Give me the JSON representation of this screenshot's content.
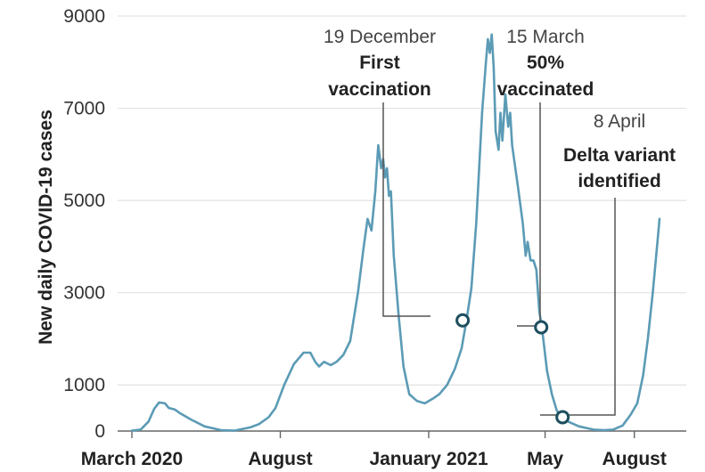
{
  "chart_data": {
    "type": "line",
    "title": "",
    "xlabel": "",
    "ylabel": "New daily COVID-19 cases",
    "ylim": [
      0,
      9000
    ],
    "yticks": [
      0,
      1000,
      3000,
      5000,
      7000,
      9000
    ],
    "xticks": [
      {
        "label": "March 2020",
        "date": "2020-03-01"
      },
      {
        "label": "August",
        "date": "2020-08-01"
      },
      {
        "label": "January 2021",
        "date": "2021-01-01"
      },
      {
        "label": "May",
        "date": "2021-05-01"
      },
      {
        "label": "August",
        "date": "2021-08-01"
      }
    ],
    "grid": {
      "horizontal": true,
      "vertical": false
    },
    "colors": {
      "line": "#5b9bb5",
      "grid": "#e3e3e3",
      "annotation": "#555555"
    },
    "series": [
      {
        "points": [
          [
            "2020-03-01",
            10
          ],
          [
            "2020-03-10",
            30
          ],
          [
            "2020-03-18",
            200
          ],
          [
            "2020-03-24",
            480
          ],
          [
            "2020-03-29",
            620
          ],
          [
            "2020-04-04",
            600
          ],
          [
            "2020-04-08",
            500
          ],
          [
            "2020-04-14",
            470
          ],
          [
            "2020-04-20",
            380
          ],
          [
            "2020-05-01",
            250
          ],
          [
            "2020-05-15",
            100
          ],
          [
            "2020-06-01",
            20
          ],
          [
            "2020-06-15",
            10
          ],
          [
            "2020-07-01",
            80
          ],
          [
            "2020-07-10",
            150
          ],
          [
            "2020-07-20",
            300
          ],
          [
            "2020-07-27",
            500
          ],
          [
            "2020-08-05",
            1000
          ],
          [
            "2020-08-15",
            1450
          ],
          [
            "2020-08-25",
            1700
          ],
          [
            "2020-09-01",
            1700
          ],
          [
            "2020-09-06",
            1500
          ],
          [
            "2020-09-10",
            1400
          ],
          [
            "2020-09-15",
            1500
          ],
          [
            "2020-09-22",
            1430
          ],
          [
            "2020-09-28",
            1500
          ],
          [
            "2020-10-05",
            1650
          ],
          [
            "2020-10-12",
            1950
          ],
          [
            "2020-10-20",
            3000
          ],
          [
            "2020-10-26",
            4000
          ],
          [
            "2020-10-30",
            4600
          ],
          [
            "2020-11-03",
            4350
          ],
          [
            "2020-11-07",
            5200
          ],
          [
            "2020-11-10",
            6200
          ],
          [
            "2020-11-13",
            5700
          ],
          [
            "2020-11-15",
            5900
          ],
          [
            "2020-11-17",
            5500
          ],
          [
            "2020-11-19",
            5700
          ],
          [
            "2020-11-21",
            5100
          ],
          [
            "2020-11-23",
            5200
          ],
          [
            "2020-11-26",
            3800
          ],
          [
            "2020-12-01",
            2500
          ],
          [
            "2020-12-06",
            1400
          ],
          [
            "2020-12-12",
            800
          ],
          [
            "2020-12-20",
            650
          ],
          [
            "2020-12-28",
            600
          ],
          [
            "2021-01-05",
            700
          ],
          [
            "2021-01-12",
            800
          ],
          [
            "2021-01-20",
            1000
          ],
          [
            "2021-01-28",
            1350
          ],
          [
            "2021-02-04",
            1800
          ],
          [
            "2021-02-09",
            2400
          ],
          [
            "2021-02-14",
            3100
          ],
          [
            "2021-02-19",
            4500
          ],
          [
            "2021-02-22",
            5700
          ],
          [
            "2021-02-25",
            6900
          ],
          [
            "2021-03-01",
            8000
          ],
          [
            "2021-03-03",
            8500
          ],
          [
            "2021-03-05",
            8200
          ],
          [
            "2021-03-07",
            8600
          ],
          [
            "2021-03-09",
            7900
          ],
          [
            "2021-03-11",
            6500
          ],
          [
            "2021-03-14",
            6100
          ],
          [
            "2021-03-16",
            6900
          ],
          [
            "2021-03-18",
            6300
          ],
          [
            "2021-03-21",
            7300
          ],
          [
            "2021-03-24",
            6600
          ],
          [
            "2021-03-26",
            6900
          ],
          [
            "2021-03-28",
            6200
          ],
          [
            "2021-04-03",
            5300
          ],
          [
            "2021-04-08",
            4500
          ],
          [
            "2021-04-11",
            3800
          ],
          [
            "2021-04-13",
            4100
          ],
          [
            "2021-04-16",
            3700
          ],
          [
            "2021-04-19",
            3700
          ],
          [
            "2021-04-22",
            3500
          ],
          [
            "2021-04-25",
            2600
          ],
          [
            "2021-04-28",
            2200
          ],
          [
            "2021-05-03",
            1300
          ],
          [
            "2021-05-08",
            800
          ],
          [
            "2021-05-13",
            450
          ],
          [
            "2021-05-18",
            300
          ],
          [
            "2021-05-25",
            200
          ],
          [
            "2021-06-05",
            100
          ],
          [
            "2021-06-20",
            30
          ],
          [
            "2021-07-01",
            20
          ],
          [
            "2021-07-10",
            30
          ],
          [
            "2021-07-20",
            120
          ],
          [
            "2021-07-28",
            350
          ],
          [
            "2021-08-04",
            600
          ],
          [
            "2021-08-10",
            1200
          ],
          [
            "2021-08-15",
            2000
          ],
          [
            "2021-08-20",
            3000
          ],
          [
            "2021-08-24",
            3900
          ],
          [
            "2021-08-27",
            4600
          ]
        ]
      }
    ],
    "annotations": [
      {
        "id": "first-vaccination",
        "date_label": "19 December",
        "lines": [
          "First",
          "vaccination"
        ],
        "marker": [
          "2021-02-05",
          2400
        ]
      },
      {
        "id": "fifty-percent-vaccinated",
        "date_label": "15 March",
        "lines": [
          "50%",
          "vaccinated"
        ],
        "marker": [
          "2021-04-27",
          2250
        ]
      },
      {
        "id": "delta-identified",
        "date_label": "8 April",
        "lines": [
          "Delta variant",
          "identified"
        ],
        "marker": [
          "2021-05-19",
          300
        ]
      }
    ]
  }
}
